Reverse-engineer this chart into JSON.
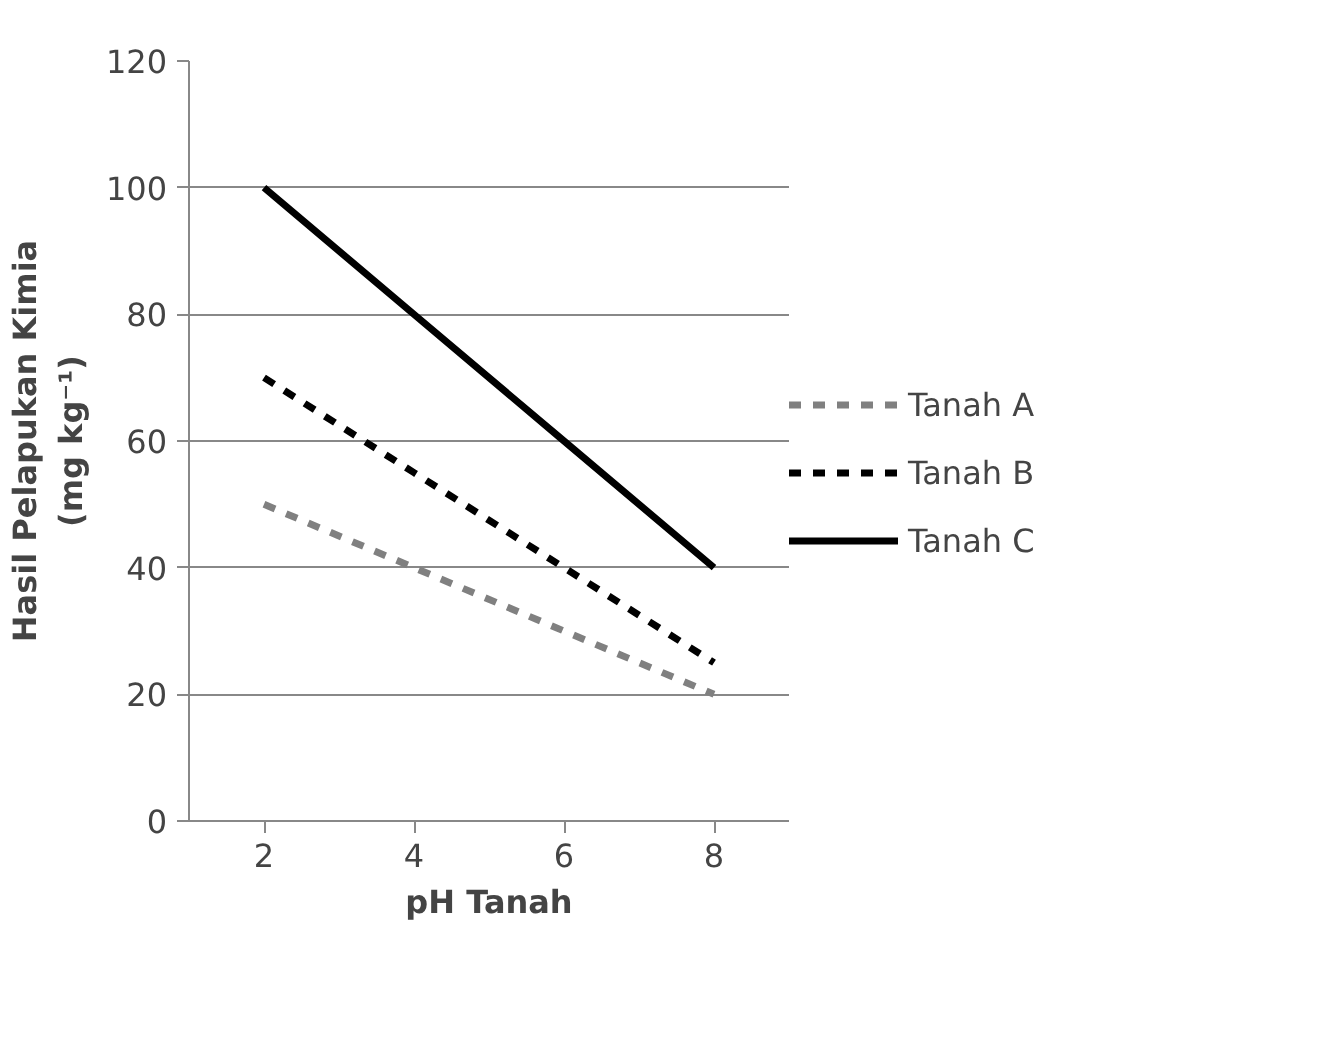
{
  "chart_data": {
    "type": "line",
    "xlabel": "pH Tanah",
    "ylabel": "Hasil Pelapukan Kimia\n(mg kg⁻¹)",
    "categories": [
      "2",
      "4",
      "6",
      "8"
    ],
    "series": [
      {
        "name": "Tanah A",
        "color": "#808080",
        "line_style": "dashed",
        "values": [
          50,
          40,
          30,
          20
        ]
      },
      {
        "name": "Tanah B",
        "color": "#000000",
        "line_style": "dashed",
        "values": [
          70,
          55,
          40,
          25
        ]
      },
      {
        "name": "Tanah C",
        "color": "#000000",
        "line_style": "solid",
        "values": [
          100,
          80,
          60,
          40
        ]
      }
    ],
    "ylim": [
      0,
      120
    ],
    "yticks": [
      0,
      20,
      40,
      60,
      80,
      100,
      120
    ],
    "grid": "y",
    "legend": "right",
    "marker": "none"
  }
}
